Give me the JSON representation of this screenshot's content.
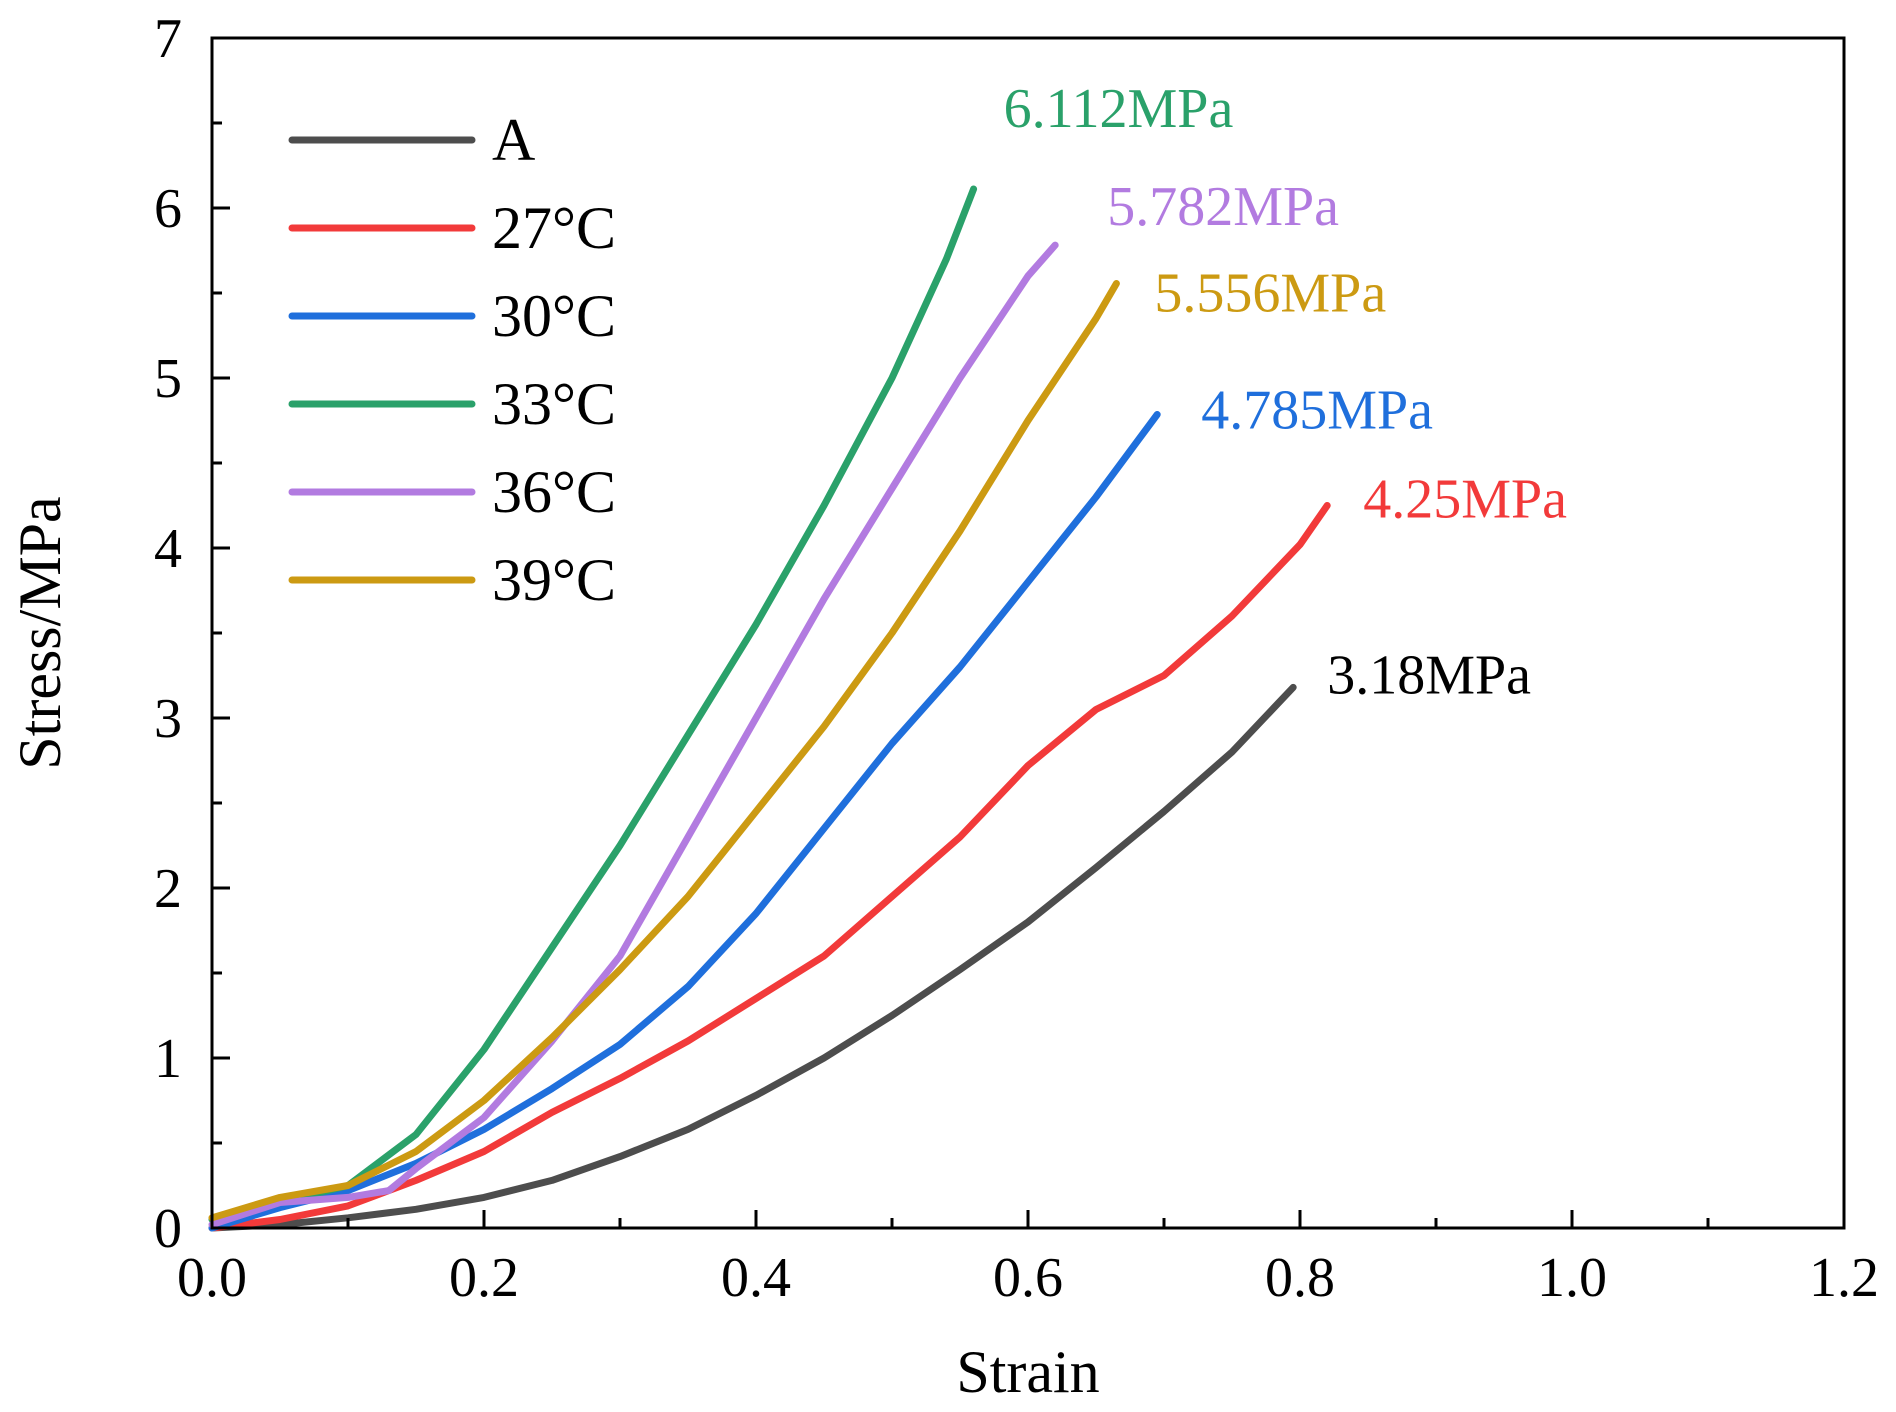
{
  "chart_data": {
    "type": "line",
    "xlabel": "Strain",
    "ylabel": "Stress/MPa",
    "xlim": [
      0.0,
      1.2
    ],
    "ylim": [
      0,
      7
    ],
    "xticks": [
      "0.0",
      "0.2",
      "0.4",
      "0.6",
      "0.8",
      "1.0",
      "1.2"
    ],
    "yticks": [
      "0",
      "1",
      "2",
      "3",
      "4",
      "5",
      "6",
      "7"
    ],
    "grid": false,
    "legend_position": "top-left",
    "series": [
      {
        "name": "A",
        "color": "#4d4d4d",
        "peak_label": "3.18MPa",
        "points": [
          [
            0,
            0
          ],
          [
            0.05,
            0.02
          ],
          [
            0.1,
            0.06
          ],
          [
            0.15,
            0.11
          ],
          [
            0.2,
            0.18
          ],
          [
            0.25,
            0.28
          ],
          [
            0.3,
            0.42
          ],
          [
            0.35,
            0.58
          ],
          [
            0.4,
            0.78
          ],
          [
            0.45,
            1.0
          ],
          [
            0.5,
            1.25
          ],
          [
            0.55,
            1.52
          ],
          [
            0.6,
            1.8
          ],
          [
            0.65,
            2.12
          ],
          [
            0.7,
            2.45
          ],
          [
            0.75,
            2.8
          ],
          [
            0.795,
            3.18
          ]
        ]
      },
      {
        "name": "27°C",
        "color": "#f23a3a",
        "peak_label": "4.25MPa",
        "points": [
          [
            0,
            0
          ],
          [
            0.05,
            0.05
          ],
          [
            0.1,
            0.13
          ],
          [
            0.15,
            0.28
          ],
          [
            0.2,
            0.45
          ],
          [
            0.25,
            0.68
          ],
          [
            0.3,
            0.88
          ],
          [
            0.35,
            1.1
          ],
          [
            0.4,
            1.35
          ],
          [
            0.45,
            1.6
          ],
          [
            0.5,
            1.95
          ],
          [
            0.55,
            2.3
          ],
          [
            0.6,
            2.72
          ],
          [
            0.65,
            3.05
          ],
          [
            0.7,
            3.25
          ],
          [
            0.75,
            3.6
          ],
          [
            0.8,
            4.02
          ],
          [
            0.82,
            4.25
          ]
        ]
      },
      {
        "name": "30°C",
        "color": "#1f6fdc",
        "peak_label": "4.785MPa",
        "points": [
          [
            0,
            0
          ],
          [
            0.05,
            0.12
          ],
          [
            0.1,
            0.22
          ],
          [
            0.15,
            0.38
          ],
          [
            0.2,
            0.58
          ],
          [
            0.25,
            0.82
          ],
          [
            0.3,
            1.08
          ],
          [
            0.35,
            1.42
          ],
          [
            0.4,
            1.85
          ],
          [
            0.45,
            2.35
          ],
          [
            0.5,
            2.85
          ],
          [
            0.55,
            3.3
          ],
          [
            0.6,
            3.8
          ],
          [
            0.65,
            4.3
          ],
          [
            0.695,
            4.785
          ]
        ]
      },
      {
        "name": "33°C",
        "color": "#2aa16a",
        "peak_label": "6.112MPa",
        "points": [
          [
            0,
            0.05
          ],
          [
            0.05,
            0.15
          ],
          [
            0.1,
            0.25
          ],
          [
            0.15,
            0.55
          ],
          [
            0.2,
            1.05
          ],
          [
            0.25,
            1.65
          ],
          [
            0.3,
            2.25
          ],
          [
            0.35,
            2.9
          ],
          [
            0.4,
            3.55
          ],
          [
            0.45,
            4.25
          ],
          [
            0.5,
            5.0
          ],
          [
            0.54,
            5.7
          ],
          [
            0.56,
            6.112
          ]
        ]
      },
      {
        "name": "36°C",
        "color": "#b27be0",
        "peak_label": "5.782MPa",
        "points": [
          [
            0,
            0.02
          ],
          [
            0.05,
            0.15
          ],
          [
            0.1,
            0.18
          ],
          [
            0.13,
            0.22
          ],
          [
            0.15,
            0.35
          ],
          [
            0.2,
            0.65
          ],
          [
            0.25,
            1.1
          ],
          [
            0.3,
            1.6
          ],
          [
            0.35,
            2.3
          ],
          [
            0.4,
            3.0
          ],
          [
            0.45,
            3.7
          ],
          [
            0.5,
            4.35
          ],
          [
            0.55,
            5.0
          ],
          [
            0.6,
            5.6
          ],
          [
            0.62,
            5.782
          ]
        ]
      },
      {
        "name": "39°C",
        "color": "#cc9a12",
        "peak_label": "5.556MPa",
        "points": [
          [
            0,
            0.06
          ],
          [
            0.05,
            0.18
          ],
          [
            0.1,
            0.25
          ],
          [
            0.15,
            0.45
          ],
          [
            0.2,
            0.75
          ],
          [
            0.25,
            1.12
          ],
          [
            0.3,
            1.52
          ],
          [
            0.35,
            1.95
          ],
          [
            0.4,
            2.45
          ],
          [
            0.45,
            2.95
          ],
          [
            0.5,
            3.5
          ],
          [
            0.55,
            4.1
          ],
          [
            0.6,
            4.75
          ],
          [
            0.65,
            5.35
          ],
          [
            0.665,
            5.556
          ]
        ]
      }
    ]
  }
}
